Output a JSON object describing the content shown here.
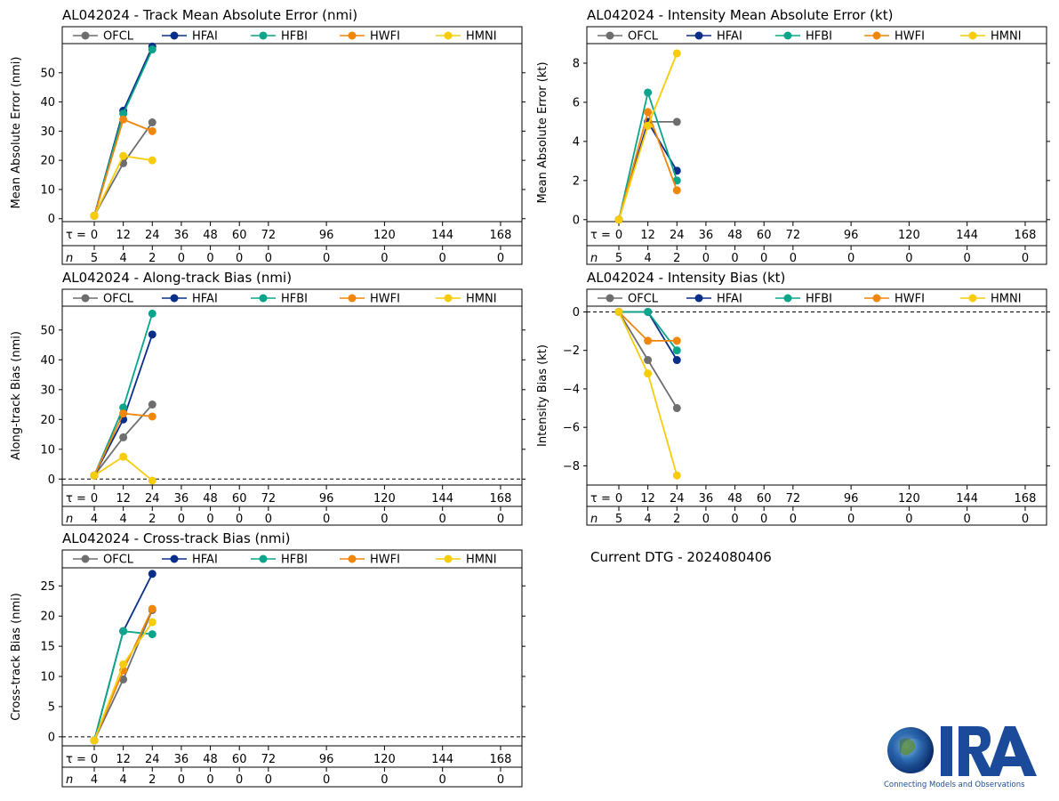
{
  "current_dtg": "Current DTG - 2024080406",
  "logo": {
    "text": "CIRA",
    "tagline": "Connecting Models and Observations"
  },
  "colors": {
    "OFCL": "#6e6e6e",
    "HFAI": "#0a2f8a",
    "HFBI": "#0aa58a",
    "HWFI": "#f0860a",
    "HMNI": "#f7cc0a"
  },
  "tau_label": "τ =",
  "n_label": "n",
  "chart_data": [
    {
      "id": "track-mae",
      "type": "line",
      "title": "AL042024 - Track Mean Absolute Error (nmi)",
      "ylabel": "Mean Absolute Error (nmi)",
      "ylim": [
        -1,
        60
      ],
      "yticks": [
        0,
        10,
        20,
        30,
        40,
        50
      ],
      "zero_line": false,
      "taus": [
        0,
        12,
        24,
        36,
        48,
        60,
        72,
        96,
        120,
        144,
        168
      ],
      "n": [
        5,
        4,
        2,
        0,
        0,
        0,
        0,
        0,
        0,
        0,
        0
      ],
      "legend": [
        "OFCL",
        "HFAI",
        "HFBI",
        "HWFI",
        "HMNI"
      ],
      "series": [
        {
          "name": "OFCL",
          "x": [
            0,
            12,
            24
          ],
          "values": [
            1,
            19,
            33
          ]
        },
        {
          "name": "HFAI",
          "x": [
            0,
            12,
            24
          ],
          "values": [
            1,
            37,
            59
          ]
        },
        {
          "name": "HFBI",
          "x": [
            0,
            12,
            24
          ],
          "values": [
            1,
            36,
            58
          ]
        },
        {
          "name": "HWFI",
          "x": [
            0,
            12,
            24
          ],
          "values": [
            1,
            34,
            30
          ]
        },
        {
          "name": "HMNI",
          "x": [
            0,
            12,
            24
          ],
          "values": [
            1,
            21.5,
            20
          ]
        }
      ]
    },
    {
      "id": "intensity-mae",
      "type": "line",
      "title": "AL042024 - Intensity Mean Absolute Error (kt)",
      "ylabel": "Mean Absolute Error (kt)",
      "ylim": [
        -0.1,
        9
      ],
      "yticks": [
        0,
        2,
        4,
        6,
        8
      ],
      "zero_line": false,
      "taus": [
        0,
        12,
        24,
        36,
        48,
        60,
        72,
        96,
        120,
        144,
        168
      ],
      "n": [
        5,
        4,
        2,
        0,
        0,
        0,
        0,
        0,
        0,
        0,
        0
      ],
      "legend": [
        "OFCL",
        "HFAI",
        "HFBI",
        "HWFI",
        "HMNI"
      ],
      "series": [
        {
          "name": "OFCL",
          "x": [
            0,
            12,
            24
          ],
          "values": [
            0,
            5,
            5
          ]
        },
        {
          "name": "HFAI",
          "x": [
            0,
            12,
            24
          ],
          "values": [
            0,
            5,
            2.5
          ]
        },
        {
          "name": "HFBI",
          "x": [
            0,
            12,
            24
          ],
          "values": [
            0,
            6.5,
            2
          ]
        },
        {
          "name": "HWFI",
          "x": [
            0,
            12,
            24
          ],
          "values": [
            0,
            5.5,
            1.5
          ]
        },
        {
          "name": "HMNI",
          "x": [
            0,
            12,
            24
          ],
          "values": [
            0,
            4.8,
            8.5
          ]
        }
      ]
    },
    {
      "id": "along-track-bias",
      "type": "line",
      "title": "AL042024 - Along-track Bias (nmi)",
      "ylabel": "Along-track Bias (nmi)",
      "ylim": [
        -2,
        58
      ],
      "yticks": [
        0,
        10,
        20,
        30,
        40,
        50
      ],
      "zero_line": true,
      "taus": [
        0,
        12,
        24,
        36,
        48,
        60,
        72,
        96,
        120,
        144,
        168
      ],
      "n": [
        4,
        4,
        2,
        0,
        0,
        0,
        0,
        0,
        0,
        0,
        0
      ],
      "legend": [
        "OFCL",
        "HFAI",
        "HFBI",
        "HWFI",
        "HMNI"
      ],
      "series": [
        {
          "name": "OFCL",
          "x": [
            0,
            12,
            24
          ],
          "values": [
            1.2,
            14,
            25
          ]
        },
        {
          "name": "HFAI",
          "x": [
            0,
            12,
            24
          ],
          "values": [
            1.2,
            20,
            48.5
          ]
        },
        {
          "name": "HFBI",
          "x": [
            0,
            12,
            24
          ],
          "values": [
            1.2,
            24,
            55.5
          ]
        },
        {
          "name": "HWFI",
          "x": [
            0,
            12,
            24
          ],
          "values": [
            1.2,
            22,
            21
          ]
        },
        {
          "name": "HMNI",
          "x": [
            0,
            12,
            24
          ],
          "values": [
            1.2,
            7.5,
            -0.5
          ]
        }
      ]
    },
    {
      "id": "intensity-bias",
      "type": "line",
      "title": "AL042024 - Intensity Bias (kt)",
      "ylabel": "Intensity Bias (kt)",
      "ylim": [
        -9,
        0.3
      ],
      "yticks": [
        0,
        -2,
        -4,
        -6,
        -8
      ],
      "zero_line": true,
      "taus": [
        0,
        12,
        24,
        36,
        48,
        60,
        72,
        96,
        120,
        144,
        168
      ],
      "n": [
        5,
        4,
        2,
        0,
        0,
        0,
        0,
        0,
        0,
        0,
        0
      ],
      "legend": [
        "OFCL",
        "HFAI",
        "HFBI",
        "HWFI",
        "HMNI"
      ],
      "series": [
        {
          "name": "OFCL",
          "x": [
            0,
            12,
            24
          ],
          "values": [
            0,
            -2.5,
            -5
          ]
        },
        {
          "name": "HFAI",
          "x": [
            0,
            12,
            24
          ],
          "values": [
            0,
            0,
            -2.5
          ]
        },
        {
          "name": "HFBI",
          "x": [
            0,
            12,
            24
          ],
          "values": [
            0,
            0,
            -2
          ]
        },
        {
          "name": "HWFI",
          "x": [
            0,
            12,
            24
          ],
          "values": [
            0,
            -1.5,
            -1.5
          ]
        },
        {
          "name": "HMNI",
          "x": [
            0,
            12,
            24
          ],
          "values": [
            0,
            -3.2,
            -8.5
          ]
        }
      ]
    },
    {
      "id": "cross-track-bias",
      "type": "line",
      "title": "AL042024 - Cross-track Bias (nmi)",
      "ylabel": "Cross-track Bias (nmi)",
      "ylim": [
        -1.5,
        28
      ],
      "yticks": [
        0,
        5,
        10,
        15,
        20,
        25
      ],
      "zero_line": true,
      "taus": [
        0,
        12,
        24,
        36,
        48,
        60,
        72,
        96,
        120,
        144,
        168
      ],
      "n": [
        4,
        4,
        2,
        0,
        0,
        0,
        0,
        0,
        0,
        0,
        0
      ],
      "legend": [
        "OFCL",
        "HFAI",
        "HFBI",
        "HWFI",
        "HMNI"
      ],
      "series": [
        {
          "name": "OFCL",
          "x": [
            0,
            12,
            24
          ],
          "values": [
            -0.6,
            9.5,
            21
          ]
        },
        {
          "name": "HFAI",
          "x": [
            0,
            12,
            24
          ],
          "values": [
            -0.6,
            17.5,
            27
          ]
        },
        {
          "name": "HFBI",
          "x": [
            0,
            12,
            24
          ],
          "values": [
            -0.6,
            17.5,
            17
          ]
        },
        {
          "name": "HWFI",
          "x": [
            0,
            12,
            24
          ],
          "values": [
            -0.6,
            11,
            21.2
          ]
        },
        {
          "name": "HMNI",
          "x": [
            0,
            12,
            24
          ],
          "values": [
            -0.6,
            12,
            19
          ]
        }
      ]
    }
  ]
}
